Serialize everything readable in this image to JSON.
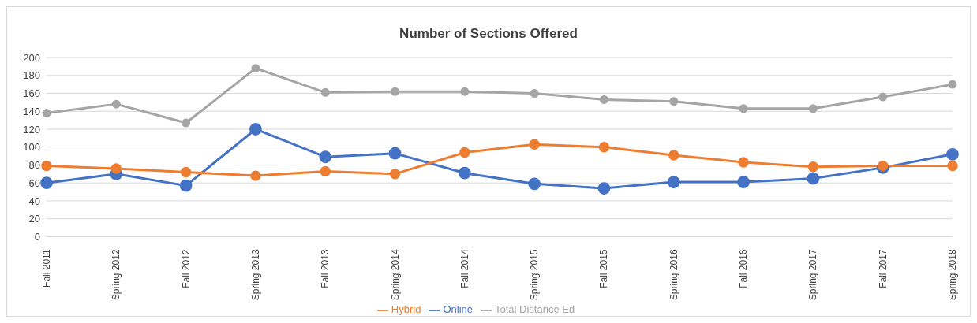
{
  "chart_data": {
    "type": "line",
    "title": "Number of Sections Offered",
    "categories": [
      "Fall 2011",
      "Spring 2012",
      "Fall 2012",
      "Spring 2013",
      "Fall 2013",
      "Spring 2014",
      "Fall 2014",
      "Spring 2015",
      "Fall 2015",
      "Spring 2016",
      "Fall 2016",
      "Spring 2017",
      "Fall 2017",
      "Spring 2018"
    ],
    "series": [
      {
        "name": "Online",
        "color": "#4472c4",
        "values": [
          60,
          70,
          57,
          120,
          89,
          93,
          71,
          59,
          54,
          61,
          61,
          65,
          77,
          92
        ]
      },
      {
        "name": "Hybrid",
        "color": "#ed7d31",
        "values": [
          79,
          76,
          72,
          68,
          73,
          70,
          94,
          103,
          100,
          91,
          83,
          78,
          79,
          79
        ]
      },
      {
        "name": "Total Distance Ed",
        "color": "#a5a5a5",
        "values": [
          138,
          148,
          127,
          188,
          161,
          162,
          162,
          160,
          153,
          151,
          143,
          143,
          156,
          170
        ]
      }
    ],
    "ylim": [
      0,
      200
    ],
    "yticks": [
      0,
      20,
      40,
      60,
      80,
      100,
      120,
      140,
      160,
      180,
      200
    ],
    "grid": "y",
    "legend": "bottom",
    "marker": "circle",
    "line_style": "solid"
  }
}
